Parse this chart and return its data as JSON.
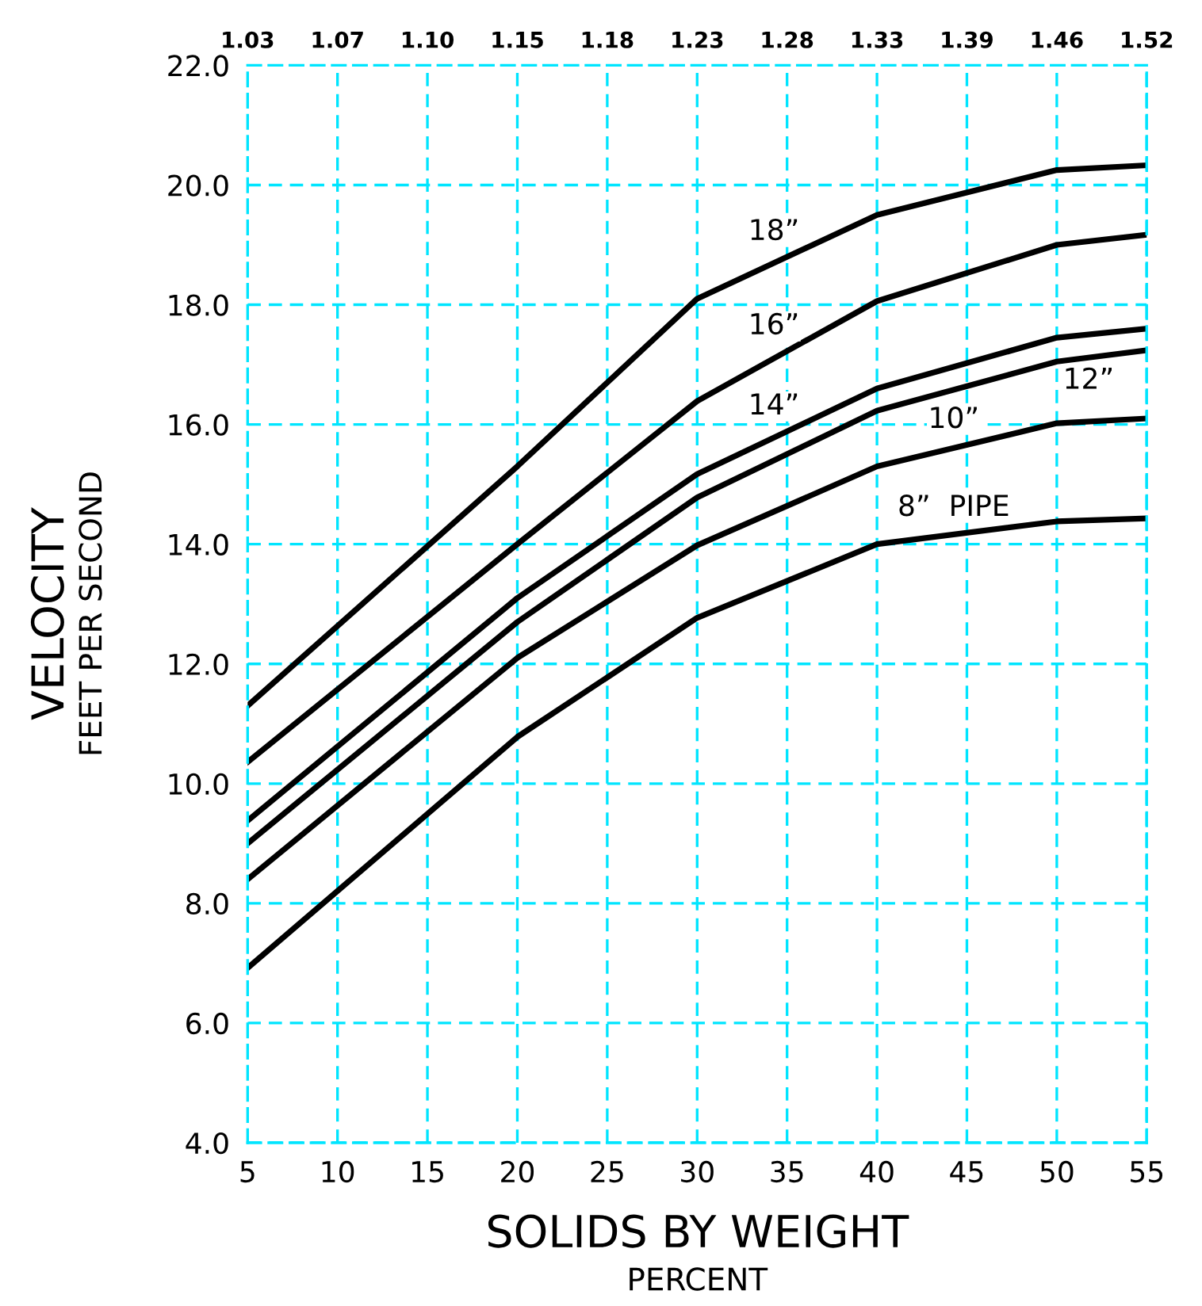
{
  "chart_data": {
    "type": "line",
    "xlabel": "SOLIDS BY WEIGHT\nPERCENT",
    "ylabel": "VELOCITY\nFEET PER SECOND",
    "x": [
      5,
      20,
      30,
      40,
      50,
      55
    ],
    "series": [
      {
        "name": "18”",
        "color": "#000000",
        "values": [
          11.3,
          15.3,
          18.1,
          19.5,
          20.25,
          20.33
        ]
      },
      {
        "name": "16”",
        "color": "#000000",
        "values": [
          10.36,
          14.0,
          16.39,
          18.06,
          19.0,
          19.17
        ]
      },
      {
        "name": "14”",
        "color": "#000000",
        "values": [
          9.38,
          13.1,
          15.17,
          16.6,
          17.45,
          17.6
        ]
      },
      {
        "name": "12”",
        "color": "#000000",
        "values": [
          9.0,
          12.7,
          14.78,
          16.23,
          17.05,
          17.24
        ]
      },
      {
        "name": "10”",
        "color": "#000000",
        "values": [
          8.4,
          12.1,
          13.98,
          15.3,
          16.02,
          16.1
        ]
      },
      {
        "name": "8”  PIPE",
        "color": "#000000",
        "values": [
          6.92,
          10.78,
          12.77,
          14.0,
          14.38,
          14.43
        ]
      }
    ],
    "annotations": [
      "1.03",
      "1.07",
      "1.10",
      "1.15",
      "1.18",
      "1.23",
      "1.28",
      "1.33",
      "1.39",
      "1.46",
      "1.52"
    ],
    "xlim": [
      5,
      55
    ],
    "xticks": [
      5,
      10,
      15,
      20,
      25,
      30,
      35,
      40,
      45,
      50,
      55
    ],
    "ylim": [
      4,
      22
    ],
    "yticks": [
      {
        "value": 4,
        "label": "4.0"
      },
      {
        "value": 6,
        "label": "6.0"
      },
      {
        "value": 8,
        "label": "8.0"
      },
      {
        "value": 10,
        "label": "10.0"
      },
      {
        "value": 12,
        "label": "12.0"
      },
      {
        "value": 14,
        "label": "14.0"
      },
      {
        "value": 16,
        "label": "16.0"
      },
      {
        "value": 18,
        "label": "18.0"
      },
      {
        "value": 20,
        "label": "20.0"
      },
      {
        "value": 22,
        "label": "22.0"
      }
    ],
    "grid": true,
    "line_style": "solid",
    "marker": "none",
    "legend": false
  }
}
